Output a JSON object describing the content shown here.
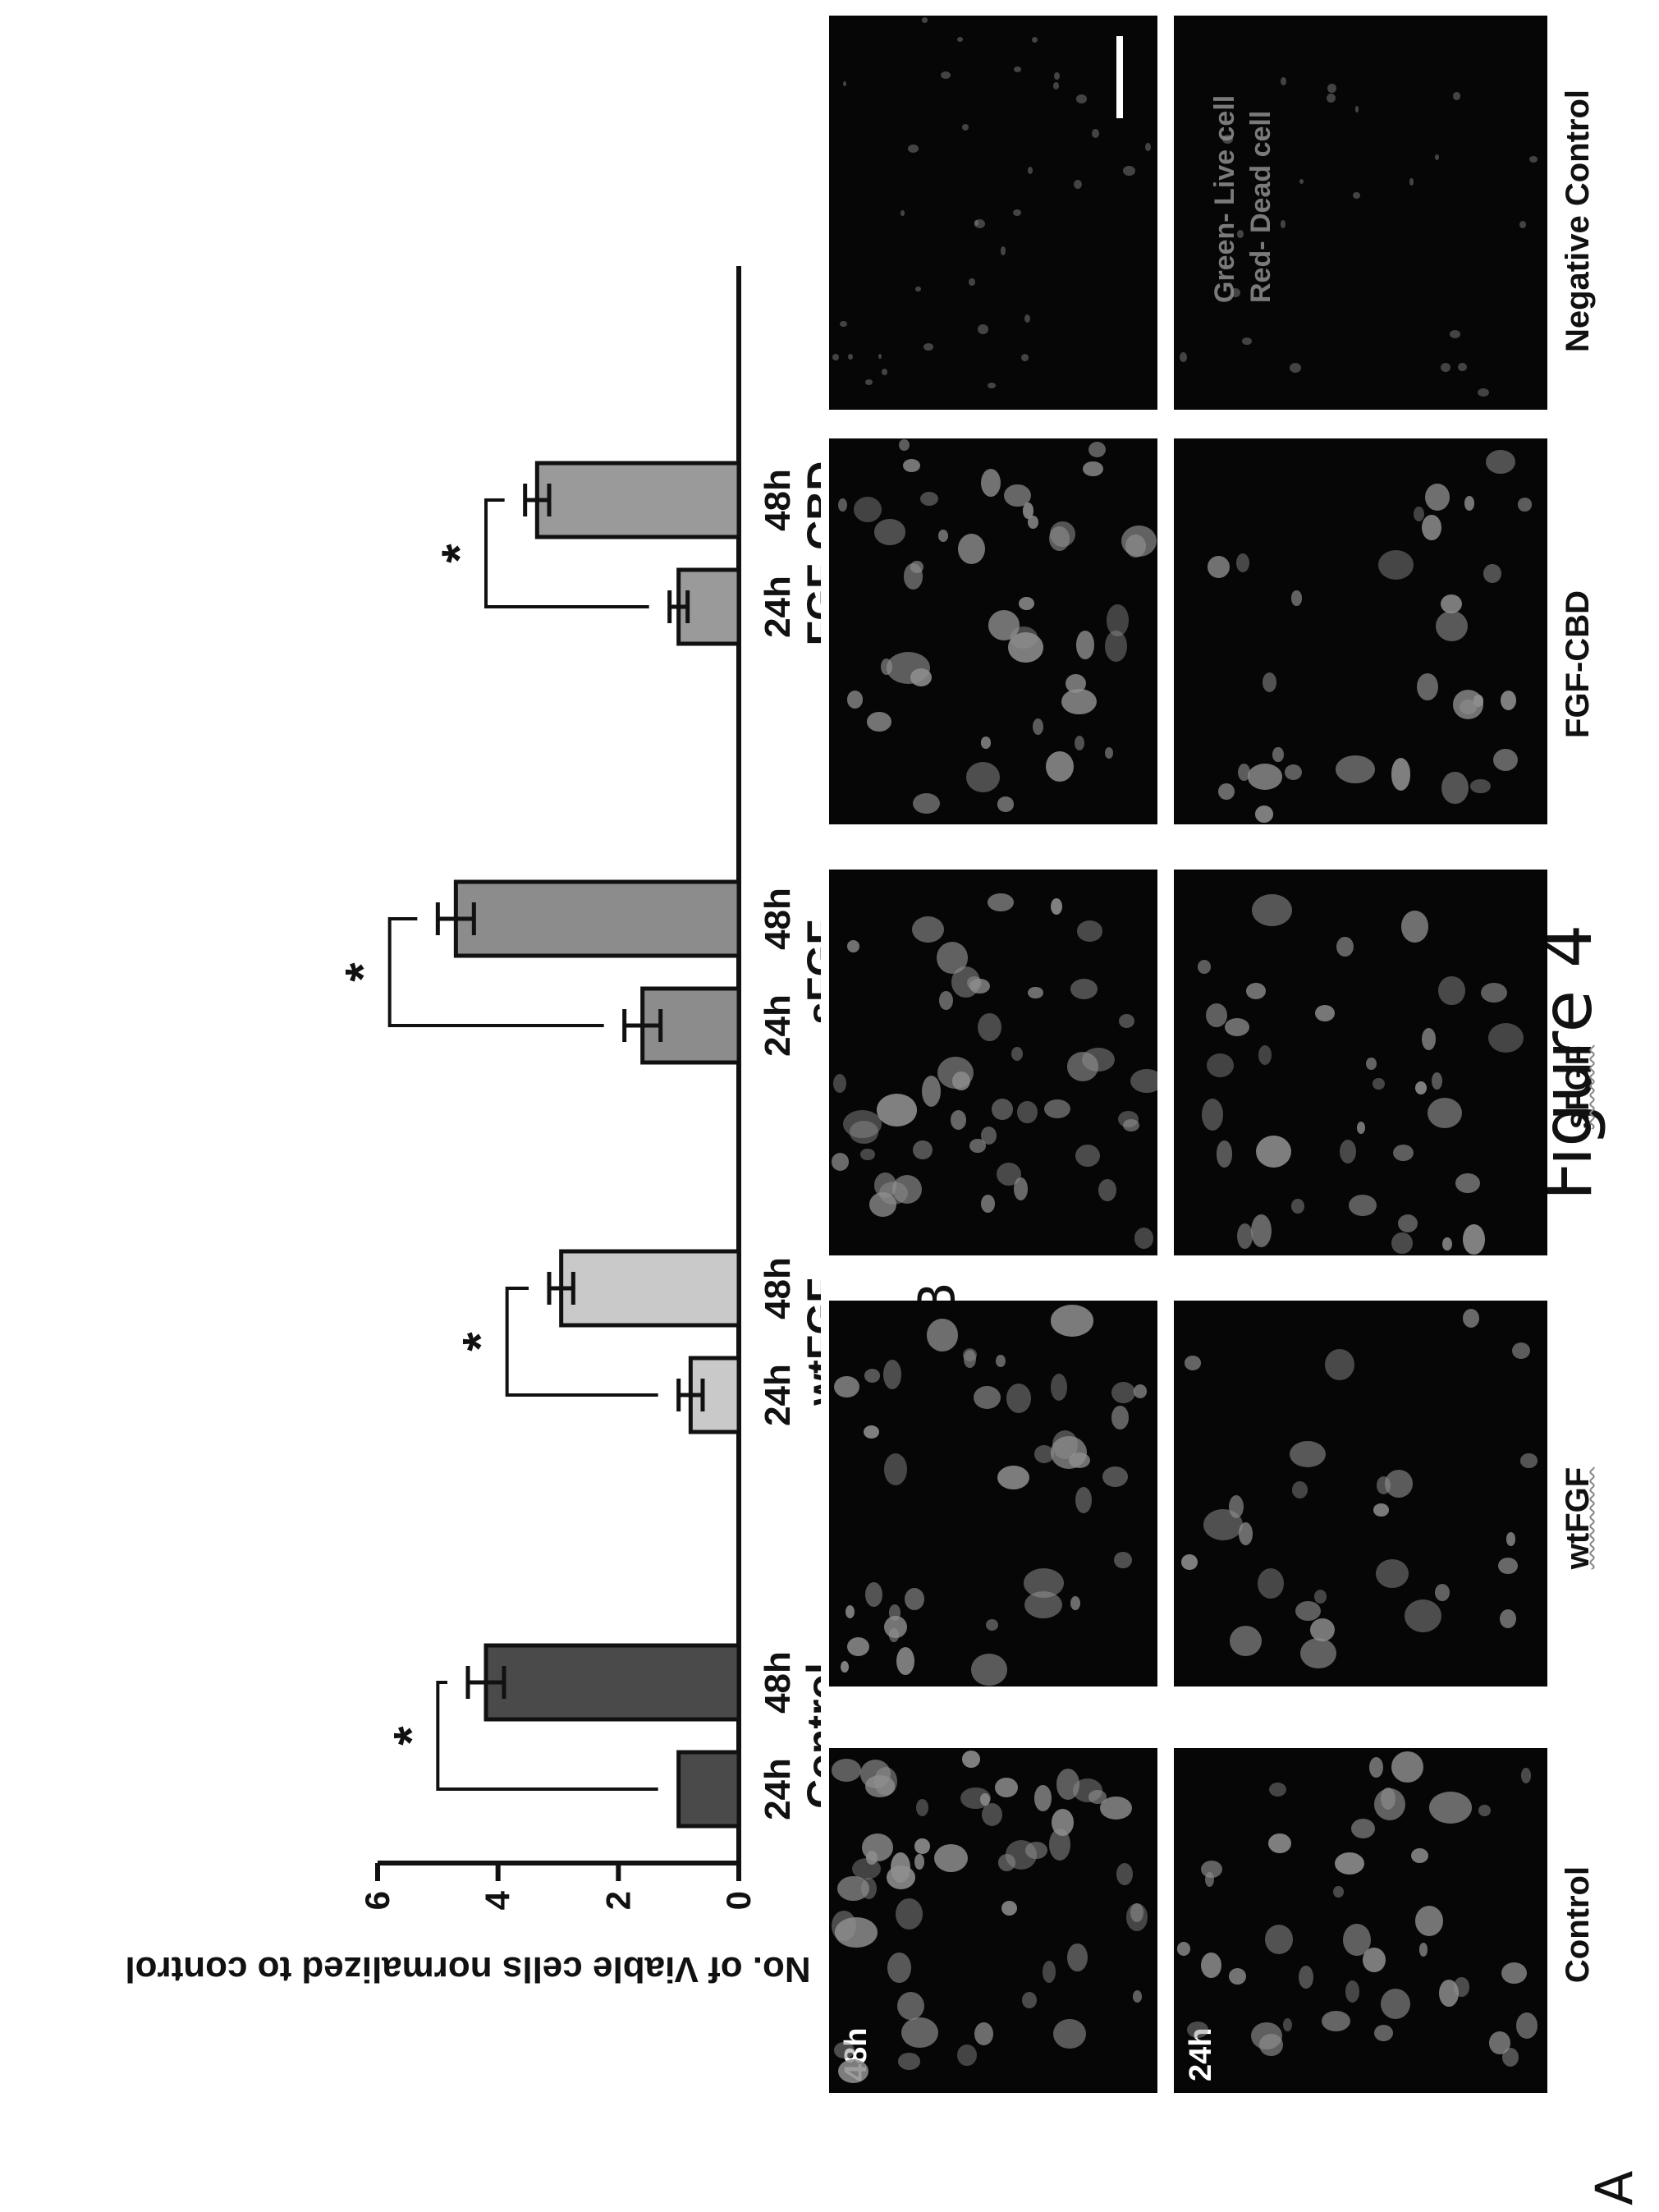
{
  "figure_title": "Figure 4",
  "panel_a_letter": "A",
  "panel_b_letter": "B",
  "columns": [
    "Control",
    "wtFGF",
    "sFGF",
    "FGF-CBD",
    "Negative Control"
  ],
  "rows": [
    "24h",
    "48h"
  ],
  "legend": {
    "live": "Green- Live cell",
    "dead": "Red- Dead cell"
  },
  "colors": {
    "control_bar": "#4a4a4a",
    "wtFGF_bar": "#c9c9c9",
    "sFGF_bar": "#8c8c8c",
    "fgfcbd_bar": "#9a9a9a",
    "micro_bg": "#060606",
    "cell": "#8f8f8f"
  },
  "chart_data": {
    "type": "bar",
    "ylabel": "No. of Viable cells normalized to control",
    "ylim": [
      0,
      6
    ],
    "yticks": [
      0,
      2,
      4,
      6
    ],
    "tick_labels": [
      "24h",
      "48h",
      "24h",
      "48h",
      "24h",
      "48h",
      "24h",
      "48h"
    ],
    "group_labels": [
      "Control",
      "wtFGF",
      "sFGF",
      "FGF-CBD"
    ],
    "bars": [
      {
        "group": "Control",
        "time": "24h",
        "value": 1.0,
        "error": 0.0
      },
      {
        "group": "Control",
        "time": "48h",
        "value": 4.2,
        "error": 0.3
      },
      {
        "group": "wtFGF",
        "time": "24h",
        "value": 0.8,
        "error": 0.2
      },
      {
        "group": "wtFGF",
        "time": "48h",
        "value": 2.95,
        "error": 0.2
      },
      {
        "group": "sFGF",
        "time": "24h",
        "value": 1.6,
        "error": 0.3
      },
      {
        "group": "sFGF",
        "time": "48h",
        "value": 4.7,
        "error": 0.3
      },
      {
        "group": "FGF-CBD",
        "time": "24h",
        "value": 1.0,
        "error": 0.15
      },
      {
        "group": "FGF-CBD",
        "time": "48h",
        "value": 3.35,
        "error": 0.2
      }
    ],
    "significance": [
      {
        "group": "Control",
        "label": "*",
        "level": 5.0
      },
      {
        "group": "wtFGF",
        "label": "*",
        "level": 3.85
      },
      {
        "group": "sFGF",
        "label": "*",
        "level": 5.8
      },
      {
        "group": "FGF-CBD",
        "label": "*",
        "level": 4.2
      }
    ]
  }
}
